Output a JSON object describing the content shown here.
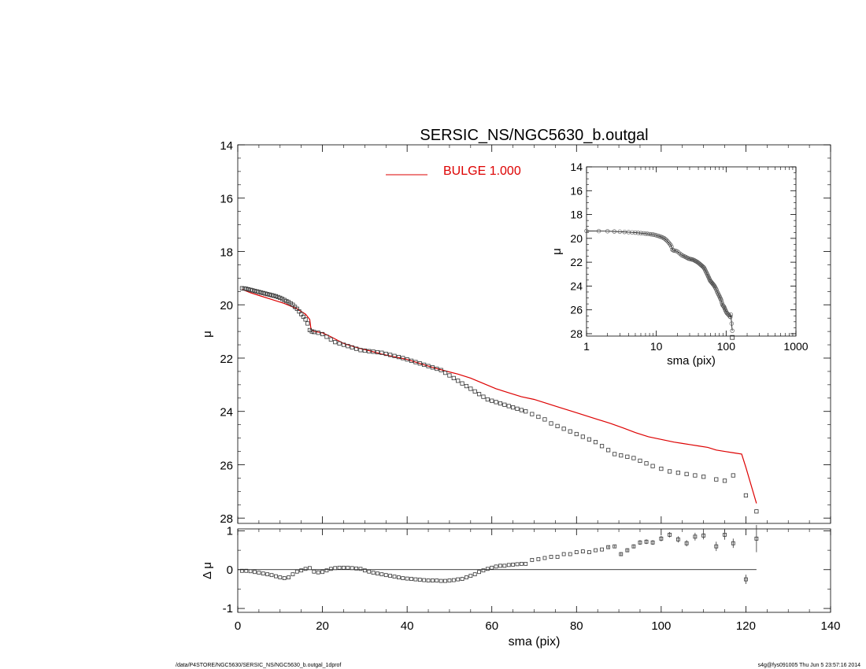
{
  "footer": {
    "left": "/data/P4STORE/NGC5630/SERSIC_NS/NGC5630_b.outgal_1dprof",
    "right": "s4g@fys091005  Thu Jun  5 23:57:16 2014"
  },
  "chart_data": [
    {
      "id": "main",
      "type": "scatter",
      "title": "SERSIC_NS/NGC5630_b.outgal",
      "xlabel": "",
      "ylabel": "μ",
      "xlim": [
        0,
        140
      ],
      "ylim": [
        28.2,
        14.0
      ],
      "y_inverted": true,
      "x_ticks": [
        0,
        20,
        40,
        60,
        80,
        100,
        120,
        140
      ],
      "y_ticks": [
        14,
        16,
        18,
        20,
        22,
        24,
        26,
        28
      ],
      "legend": {
        "position": "top-center",
        "entries": [
          {
            "label": "BULGE  1.000",
            "color": "#dd0000"
          }
        ]
      },
      "series": [
        {
          "name": "",
          "kind": "points",
          "marker": "square",
          "color": "#000000",
          "x": [
            1.0,
            1.5,
            2.0,
            2.5,
            3.0,
            3.5,
            4.0,
            4.5,
            5.0,
            5.5,
            6.0,
            6.5,
            7.0,
            7.5,
            8.0,
            8.5,
            9.0,
            9.5,
            10.0,
            10.5,
            11.0,
            11.5,
            12.0,
            12.5,
            13.0,
            13.5,
            14.0,
            14.5,
            15.0,
            15.5,
            16.0,
            16.5,
            17.0,
            17.5,
            18.0,
            19.0,
            20.0,
            21.0,
            22.0,
            23.0,
            24.0,
            25.0,
            26.0,
            27.0,
            28.0,
            29.0,
            30.0,
            31.0,
            32.0,
            33.0,
            34.0,
            35.0,
            36.0,
            37.0,
            38.0,
            39.0,
            40.0,
            41.0,
            42.0,
            43.0,
            44.0,
            45.0,
            46.0,
            47.0,
            48.0,
            49.0,
            50.0,
            51.0,
            52.0,
            53.0,
            54.0,
            55.0,
            56.0,
            57.0,
            58.0,
            59.0,
            60.0,
            61.0,
            62.0,
            63.0,
            64.0,
            65.0,
            66.0,
            67.0,
            68.0,
            69.5,
            71.0,
            72.5,
            74.0,
            75.5,
            77.0,
            78.5,
            80.0,
            81.5,
            83.0,
            84.5,
            86.0,
            87.5,
            89.0,
            90.5,
            92.0,
            93.5,
            95.0,
            96.5,
            98.0,
            100.0,
            102.0,
            104.0,
            106.0,
            108.0,
            110.0,
            113.0,
            115.0,
            117.0,
            120.0,
            122.5
          ],
          "y": [
            19.38,
            19.39,
            19.4,
            19.42,
            19.44,
            19.46,
            19.48,
            19.5,
            19.52,
            19.54,
            19.56,
            19.58,
            19.6,
            19.62,
            19.64,
            19.66,
            19.68,
            19.71,
            19.74,
            19.78,
            19.82,
            19.86,
            19.9,
            19.95,
            20.0,
            20.08,
            20.15,
            20.25,
            20.35,
            20.45,
            20.55,
            20.7,
            20.95,
            21.0,
            21.02,
            21.05,
            21.1,
            21.2,
            21.3,
            21.4,
            21.45,
            21.5,
            21.55,
            21.6,
            21.65,
            21.7,
            21.72,
            21.74,
            21.76,
            21.78,
            21.8,
            21.84,
            21.88,
            21.92,
            21.96,
            22.0,
            22.05,
            22.1,
            22.15,
            22.2,
            22.25,
            22.3,
            22.35,
            22.4,
            22.45,
            22.55,
            22.65,
            22.75,
            22.85,
            22.95,
            23.05,
            23.15,
            23.25,
            23.35,
            23.45,
            23.55,
            23.6,
            23.65,
            23.7,
            23.75,
            23.8,
            23.85,
            23.9,
            23.95,
            24.0,
            24.1,
            24.2,
            24.3,
            24.45,
            24.55,
            24.65,
            24.75,
            24.85,
            24.95,
            25.05,
            25.15,
            25.3,
            25.45,
            25.6,
            25.65,
            25.7,
            25.75,
            25.85,
            25.95,
            26.05,
            26.15,
            26.25,
            26.3,
            26.35,
            26.4,
            26.45,
            26.55,
            26.6,
            26.4,
            27.15,
            27.75
          ]
        },
        {
          "name": "BULGE  1.000",
          "kind": "line",
          "color": "#dd0000",
          "x": [
            1.0,
            3.0,
            5.0,
            8.0,
            11.0,
            14.0,
            16.0,
            17.0,
            17.3,
            18.0,
            20.0,
            22.0,
            25.0,
            28.0,
            31.0,
            34.0,
            37.0,
            40.0,
            43.0,
            46.0,
            49.0,
            52.0,
            55.0,
            58.0,
            61.0,
            64.0,
            67.0,
            70.0,
            73.0,
            76.0,
            79.0,
            82.0,
            85.0,
            88.0,
            91.0,
            94.0,
            97.0,
            100.0,
            103.0,
            105.0,
            107.0,
            109.0,
            111.0,
            113.0,
            115.0,
            117.0,
            119.0,
            120.0,
            122.5
          ],
          "y": [
            19.42,
            19.55,
            19.65,
            19.8,
            19.95,
            20.15,
            20.35,
            20.55,
            20.92,
            21.0,
            21.05,
            21.2,
            21.45,
            21.6,
            21.72,
            21.85,
            21.95,
            22.05,
            22.2,
            22.35,
            22.48,
            22.6,
            22.75,
            22.95,
            23.15,
            23.3,
            23.45,
            23.55,
            23.7,
            23.85,
            24.0,
            24.15,
            24.3,
            24.45,
            24.62,
            24.8,
            24.95,
            25.05,
            25.15,
            25.2,
            25.25,
            25.3,
            25.35,
            25.45,
            25.5,
            25.55,
            25.6,
            26.1,
            27.45
          ]
        }
      ]
    },
    {
      "id": "inset",
      "type": "scatter",
      "title": "",
      "xlabel": "sma (pix)",
      "ylabel": "μ",
      "xscale": "log",
      "xlim": [
        1,
        1000
      ],
      "ylim": [
        28.2,
        14.0
      ],
      "y_inverted": true,
      "x_ticks": [
        1,
        10,
        100,
        1000
      ],
      "y_ticks": [
        14,
        16,
        18,
        20,
        22,
        24,
        26,
        28
      ],
      "series": [
        {
          "name": "",
          "kind": "points_line",
          "color": "#000000",
          "marker": "circle",
          "ref": "main.series.0"
        }
      ]
    },
    {
      "id": "residual",
      "type": "scatter",
      "title": "",
      "xlabel": "sma (pix)",
      "ylabel": "Δ μ",
      "xlim": [
        0,
        140
      ],
      "ylim": [
        -1.1,
        1.05
      ],
      "x_ticks": [
        0,
        20,
        40,
        60,
        80,
        100,
        120,
        140
      ],
      "y_ticks": [
        -1,
        0,
        1
      ],
      "zero_line": true,
      "series": [
        {
          "name": "",
          "kind": "points_errorbars",
          "marker": "square",
          "color": "#000000",
          "x": [
            1.0,
            2.0,
            3.0,
            4.0,
            5.0,
            6.0,
            7.0,
            8.0,
            9.0,
            10.0,
            11.0,
            12.0,
            13.0,
            14.0,
            15.0,
            16.0,
            17.0,
            18.0,
            19.0,
            20.0,
            21.0,
            22.0,
            23.0,
            24.0,
            25.0,
            26.0,
            27.0,
            28.0,
            29.0,
            30.0,
            31.0,
            32.0,
            33.0,
            34.0,
            35.0,
            36.0,
            37.0,
            38.0,
            39.0,
            40.0,
            41.0,
            42.0,
            43.0,
            44.0,
            45.0,
            46.0,
            47.0,
            48.0,
            49.0,
            50.0,
            51.0,
            52.0,
            53.0,
            54.0,
            55.0,
            56.0,
            57.0,
            58.0,
            59.0,
            60.0,
            61.0,
            62.0,
            63.0,
            64.0,
            65.0,
            66.0,
            67.0,
            68.0,
            69.5,
            71.0,
            72.5,
            74.0,
            75.5,
            77.0,
            78.5,
            80.0,
            81.5,
            83.0,
            84.5,
            86.0,
            87.5,
            89.0,
            90.5,
            92.0,
            93.5,
            95.0,
            96.5,
            98.0,
            100.0,
            102.0,
            104.0,
            106.0,
            108.0,
            110.0,
            113.0,
            115.0,
            117.0,
            120.0,
            122.5
          ],
          "y": [
            -0.03,
            -0.03,
            -0.04,
            -0.06,
            -0.08,
            -0.1,
            -0.12,
            -0.14,
            -0.17,
            -0.2,
            -0.22,
            -0.2,
            -0.12,
            -0.05,
            -0.02,
            0.02,
            0.04,
            -0.05,
            -0.07,
            -0.06,
            -0.02,
            0.02,
            0.04,
            0.05,
            0.05,
            0.05,
            0.04,
            0.03,
            0.02,
            -0.02,
            -0.05,
            -0.08,
            -0.1,
            -0.12,
            -0.14,
            -0.16,
            -0.18,
            -0.2,
            -0.22,
            -0.23,
            -0.24,
            -0.25,
            -0.26,
            -0.27,
            -0.28,
            -0.28,
            -0.28,
            -0.29,
            -0.29,
            -0.28,
            -0.27,
            -0.25,
            -0.24,
            -0.2,
            -0.16,
            -0.12,
            -0.06,
            -0.02,
            0.02,
            0.05,
            0.08,
            0.1,
            0.1,
            0.12,
            0.13,
            0.14,
            0.15,
            0.15,
            0.25,
            0.27,
            0.3,
            0.33,
            0.33,
            0.4,
            0.4,
            0.45,
            0.47,
            0.45,
            0.5,
            0.52,
            0.58,
            0.6,
            0.4,
            0.5,
            0.6,
            0.7,
            0.72,
            0.7,
            0.8,
            0.9,
            0.78,
            0.68,
            0.85,
            0.88,
            0.6,
            0.9,
            0.68,
            -0.25,
            0.8
          ],
          "err": [
            0,
            0,
            0,
            0,
            0,
            0,
            0,
            0,
            0,
            0,
            0,
            0,
            0,
            0,
            0,
            0,
            0,
            0,
            0,
            0,
            0,
            0,
            0,
            0,
            0,
            0,
            0,
            0,
            0,
            0,
            0,
            0,
            0,
            0,
            0,
            0,
            0,
            0,
            0,
            0,
            0,
            0,
            0,
            0,
            0,
            0,
            0,
            0,
            0,
            0,
            0,
            0,
            0,
            0,
            0,
            0,
            0,
            0,
            0,
            0,
            0,
            0,
            0,
            0,
            0,
            0,
            0,
            0,
            0,
            0,
            0,
            0,
            0,
            0,
            0,
            0,
            0,
            0,
            0,
            0,
            0.03,
            0.03,
            0.05,
            0.05,
            0.05,
            0.06,
            0.06,
            0.06,
            0.07,
            0.07,
            0.08,
            0.08,
            0.1,
            0.1,
            0.12,
            0.13,
            0.12,
            0.12,
            0.35
          ]
        }
      ]
    }
  ]
}
